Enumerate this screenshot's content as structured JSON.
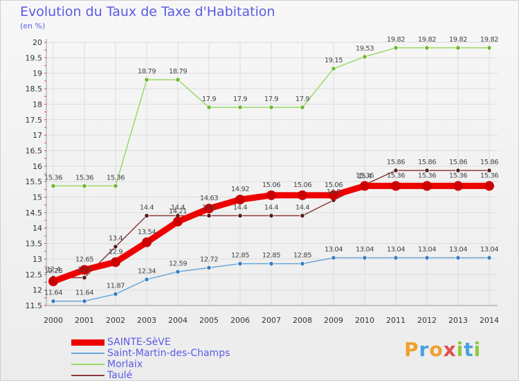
{
  "chart_data": {
    "type": "line",
    "title": "Evolution du Taux de Taxe d'Habitation",
    "ylabel": "(en %)",
    "xlabel": "",
    "x": [
      "2000",
      "2001",
      "2002",
      "2003",
      "2004",
      "2005",
      "2006",
      "2007",
      "2008",
      "2009",
      "2010",
      "2011",
      "2012",
      "2013",
      "2014"
    ],
    "ylim": [
      11.5,
      20
    ],
    "yticks": [
      "11.5",
      "12",
      "12.5",
      "13",
      "13.5",
      "14",
      "14.5",
      "15",
      "15.5",
      "16",
      "16.5",
      "17",
      "17.5",
      "18",
      "18.5",
      "19",
      "19.5",
      "20"
    ],
    "grid": true,
    "legend_position": "bottom-left",
    "series": [
      {
        "name": "SAINTE-SèVE",
        "color": "#ff0000",
        "values": [
          12.28,
          12.65,
          12.9,
          13.54,
          14.21,
          14.63,
          14.92,
          15.06,
          15.06,
          15.06,
          15.36,
          15.36,
          15.36,
          15.36,
          15.36
        ],
        "labels": [
          "12.28",
          "12.65",
          "12.9",
          "13.54",
          "14.21",
          "14.63",
          "14.92",
          "15.06",
          "15.06",
          "15.06",
          "15.36",
          "15.36",
          "15.36",
          "15.36",
          "15.36"
        ]
      },
      {
        "name": "Saint-Martin-des-Champs",
        "color": "#5b9bd5",
        "values": [
          11.64,
          11.64,
          11.87,
          12.34,
          12.59,
          12.72,
          12.85,
          12.85,
          12.85,
          13.04,
          13.04,
          13.04,
          13.04,
          13.04,
          13.04
        ],
        "labels": [
          "11.64",
          "11.64",
          "11.87",
          "12.34",
          "12.59",
          "12.72",
          "12.85",
          "12.85",
          "12.85",
          "13.04",
          "13.04",
          "13.04",
          "13.04",
          "13.04",
          "13.04"
        ]
      },
      {
        "name": "Morlaix",
        "color": "#8fd14f",
        "values": [
          15.36,
          15.36,
          15.36,
          18.79,
          18.79,
          17.9,
          17.9,
          17.9,
          17.9,
          19.15,
          19.53,
          19.82,
          19.82,
          19.82,
          19.82
        ],
        "labels": [
          "15.36",
          "15.36",
          "15.36",
          "18.79",
          "18.79",
          "17.9",
          "17.9",
          "17.9",
          "17.9",
          "19.15",
          "19.53",
          "19.82",
          "19.82",
          "19.82",
          "19.82"
        ]
      },
      {
        "name": "Taulé",
        "color": "#7a2a2a",
        "values": [
          12.4,
          12.4,
          13.4,
          14.4,
          14.4,
          14.4,
          14.4,
          14.4,
          14.4,
          14.9,
          15.4,
          15.86,
          15.86,
          15.86,
          15.86
        ],
        "labels": [
          "12.4",
          "12.4",
          "13.4",
          "14.4",
          "14.4",
          "14.4",
          "14.4",
          "14.4",
          "14.4",
          "14.9",
          "15.4",
          "15.86",
          "15.86",
          "15.86",
          "15.86"
        ]
      }
    ]
  },
  "brand": {
    "text": "Proxiti",
    "letter_colors": [
      "#f0a030",
      "#4aa0e0",
      "#f0a030",
      "#e05050",
      "#8cc840",
      "#4aa0e0",
      "#8cc840"
    ]
  }
}
